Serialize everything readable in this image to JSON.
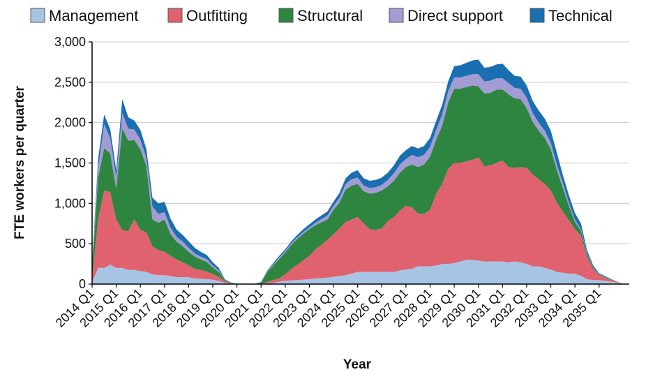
{
  "chart_data": {
    "type": "area",
    "stacked": true,
    "xlabel": "Year",
    "ylabel": "FTE workers per quarter",
    "ylim": [
      0,
      3000
    ],
    "yticks": [
      0,
      500,
      1000,
      1500,
      2000,
      2500,
      3000
    ],
    "ytick_labels": [
      "0",
      "500",
      "1,000",
      "1,500",
      "2,000",
      "2,500",
      "3,000"
    ],
    "xlim": [
      2014,
      2036.25
    ],
    "xticks": [
      2014,
      2015,
      2016,
      2017,
      2018,
      2019,
      2020,
      2021,
      2022,
      2023,
      2024,
      2025,
      2026,
      2027,
      2028,
      2029,
      2030,
      2031,
      2032,
      2033,
      2034,
      2035
    ],
    "xtick_labels": [
      "2014 Q1",
      "2015 Q1",
      "2016 Q1",
      "2017 Q1",
      "2018 Q1",
      "2019 Q1",
      "2020 Q1",
      "2021 Q1",
      "2022 Q1",
      "2023 Q1",
      "2024 Q1",
      "2025 Q1",
      "2026 Q1",
      "2027 Q1",
      "2028 Q1",
      "2029 Q1",
      "2030 Q1",
      "2031 Q1",
      "2032 Q1",
      "2033 Q1",
      "2034 Q1",
      "2035 Q1"
    ],
    "legend_position": "top",
    "grid": "horizontal",
    "x": [
      2014.0,
      2014.25,
      2014.5,
      2014.75,
      2015.0,
      2015.25,
      2015.5,
      2015.75,
      2016.0,
      2016.25,
      2016.5,
      2016.75,
      2017.0,
      2017.25,
      2017.5,
      2017.75,
      2018.0,
      2018.25,
      2018.5,
      2018.75,
      2019.0,
      2019.25,
      2019.5,
      2019.75,
      2020.0,
      2020.25,
      2020.5,
      2020.75,
      2021.0,
      2021.25,
      2021.5,
      2021.75,
      2022.0,
      2022.25,
      2022.5,
      2022.75,
      2023.0,
      2023.25,
      2023.5,
      2023.75,
      2024.0,
      2024.25,
      2024.5,
      2024.75,
      2025.0,
      2025.25,
      2025.5,
      2025.75,
      2026.0,
      2026.25,
      2026.5,
      2026.75,
      2027.0,
      2027.25,
      2027.5,
      2027.75,
      2028.0,
      2028.25,
      2028.5,
      2028.75,
      2029.0,
      2029.25,
      2029.5,
      2029.75,
      2030.0,
      2030.25,
      2030.5,
      2030.75,
      2031.0,
      2031.25,
      2031.5,
      2031.75,
      2032.0,
      2032.25,
      2032.5,
      2032.75,
      2033.0,
      2033.25,
      2033.5,
      2033.75,
      2034.0,
      2034.25,
      2034.5,
      2034.75,
      2035.0,
      2035.25,
      2035.5,
      2035.75,
      2036.0
    ],
    "series": [
      {
        "name": "Management",
        "color": "#a7c4e5",
        "values": [
          20,
          200,
          200,
          240,
          200,
          200,
          175,
          175,
          160,
          150,
          120,
          110,
          110,
          100,
          85,
          85,
          85,
          70,
          65,
          60,
          55,
          40,
          15,
          5,
          5,
          5,
          5,
          5,
          5,
          10,
          15,
          30,
          40,
          45,
          50,
          55,
          60,
          70,
          75,
          80,
          90,
          100,
          110,
          130,
          150,
          150,
          150,
          150,
          150,
          150,
          150,
          170,
          180,
          190,
          220,
          220,
          220,
          230,
          250,
          250,
          260,
          280,
          300,
          300,
          290,
          280,
          280,
          280,
          280,
          270,
          280,
          270,
          250,
          220,
          220,
          200,
          180,
          150,
          140,
          130,
          130,
          100,
          60,
          50,
          50,
          40,
          30,
          20,
          0
        ]
      },
      {
        "name": "Outfitting",
        "color": "#e0626e",
        "values": [
          50,
          600,
          960,
          900,
          600,
          470,
          480,
          630,
          510,
          490,
          350,
          310,
          290,
          250,
          220,
          185,
          145,
          120,
          110,
          95,
          70,
          50,
          20,
          5,
          0,
          0,
          0,
          0,
          0,
          15,
          35,
          40,
          80,
          140,
          190,
          240,
          290,
          360,
          410,
          470,
          530,
          590,
          660,
          670,
          680,
          600,
          530,
          520,
          540,
          630,
          680,
          740,
          790,
          760,
          650,
          650,
          700,
          890,
          990,
          1180,
          1240,
          1220,
          1220,
          1240,
          1280,
          1180,
          1190,
          1220,
          1250,
          1180,
          1160,
          1180,
          1190,
          1140,
          1080,
          1040,
          980,
          860,
          760,
          660,
          550,
          500,
          280,
          140,
          60,
          40,
          20,
          10,
          0
        ]
      },
      {
        "name": "Structural",
        "color": "#2e8540",
        "values": [
          120,
          520,
          520,
          480,
          380,
          1260,
          1120,
          980,
          1000,
          820,
          330,
          340,
          400,
          270,
          220,
          200,
          170,
          150,
          130,
          120,
          80,
          60,
          10,
          5,
          0,
          0,
          0,
          0,
          15,
          120,
          180,
          240,
          270,
          300,
          320,
          330,
          330,
          300,
          280,
          250,
          300,
          320,
          400,
          420,
          410,
          400,
          440,
          460,
          470,
          430,
          450,
          470,
          480,
          530,
          580,
          610,
          660,
          670,
          720,
          820,
          920,
          920,
          920,
          920,
          880,
          900,
          900,
          910,
          880,
          900,
          860,
          840,
          740,
          650,
          600,
          570,
          510,
          400,
          290,
          180,
          90,
          60,
          30,
          20,
          10,
          10,
          5,
          0,
          0
        ]
      },
      {
        "name": "Direct support",
        "color": "#a29bd4",
        "values": [
          30,
          120,
          300,
          190,
          140,
          190,
          150,
          130,
          120,
          100,
          160,
          110,
          90,
          80,
          60,
          60,
          50,
          40,
          35,
          35,
          25,
          20,
          5,
          0,
          0,
          0,
          0,
          0,
          0,
          10,
          15,
          20,
          20,
          20,
          20,
          20,
          20,
          30,
          40,
          50,
          50,
          60,
          70,
          80,
          80,
          70,
          70,
          70,
          70,
          80,
          90,
          100,
          100,
          120,
          120,
          120,
          120,
          120,
          140,
          140,
          140,
          140,
          140,
          140,
          150,
          150,
          150,
          140,
          140,
          140,
          130,
          130,
          130,
          110,
          100,
          90,
          80,
          70,
          60,
          40,
          30,
          20,
          10,
          5,
          5,
          5,
          5,
          0,
          0
        ]
      },
      {
        "name": "Technical",
        "color": "#1a6fb0",
        "values": [
          30,
          110,
          120,
          110,
          90,
          170,
          140,
          110,
          120,
          110,
          110,
          130,
          130,
          110,
          90,
          80,
          80,
          70,
          60,
          50,
          40,
          30,
          10,
          5,
          0,
          0,
          0,
          0,
          5,
          10,
          15,
          20,
          20,
          25,
          30,
          35,
          40,
          40,
          45,
          50,
          50,
          60,
          70,
          80,
          90,
          90,
          90,
          90,
          90,
          90,
          100,
          110,
          110,
          110,
          110,
          110,
          110,
          110,
          120,
          120,
          140,
          150,
          160,
          170,
          180,
          170,
          170,
          170,
          180,
          160,
          150,
          150,
          150,
          150,
          150,
          150,
          150,
          150,
          100,
          90,
          80,
          70,
          40,
          20,
          10,
          5,
          5,
          0,
          0
        ]
      }
    ]
  }
}
